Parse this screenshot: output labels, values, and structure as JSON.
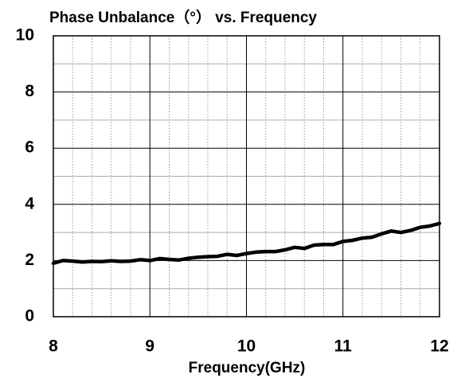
{
  "chart_data": {
    "type": "line",
    "title": "Phase Unbalance（°） vs. Frequency",
    "xlabel": "Frequency(GHz)",
    "x": [
      8.0,
      8.1,
      8.2,
      8.3,
      8.4,
      8.5,
      8.6,
      8.7,
      8.8,
      8.9,
      9.0,
      9.1,
      9.2,
      9.3,
      9.4,
      9.5,
      9.6,
      9.7,
      9.8,
      9.9,
      10.0,
      10.1,
      10.2,
      10.3,
      10.4,
      10.5,
      10.6,
      10.7,
      10.8,
      10.9,
      11.0,
      11.1,
      11.2,
      11.3,
      11.4,
      11.5,
      11.6,
      11.7,
      11.8,
      11.9,
      12.0
    ],
    "series": [
      {
        "name": "Phase Unbalance",
        "color": "#000000",
        "values": [
          1.9,
          2.0,
          1.98,
          1.95,
          1.97,
          1.96,
          1.99,
          1.97,
          1.98,
          2.03,
          2.0,
          2.07,
          2.04,
          2.02,
          2.08,
          2.12,
          2.14,
          2.15,
          2.22,
          2.18,
          2.25,
          2.3,
          2.32,
          2.32,
          2.38,
          2.47,
          2.43,
          2.55,
          2.57,
          2.57,
          2.68,
          2.72,
          2.8,
          2.83,
          2.95,
          3.05,
          3.0,
          3.07,
          3.18,
          3.23,
          3.32
        ]
      }
    ],
    "xlim": [
      8,
      12
    ],
    "xticks": [
      8,
      9,
      10,
      11,
      12
    ],
    "ylim": [
      0,
      10
    ],
    "yticks": [
      0,
      2,
      4,
      6,
      8,
      10
    ],
    "xminorticks": [
      8.2,
      8.4,
      8.6,
      8.8,
      9.2,
      9.4,
      9.6,
      9.8,
      10.2,
      10.4,
      10.6,
      10.8,
      11.2,
      11.4,
      11.6,
      11.8
    ],
    "yminorticks": [
      1,
      3,
      5,
      7,
      9
    ],
    "grid": true
  }
}
